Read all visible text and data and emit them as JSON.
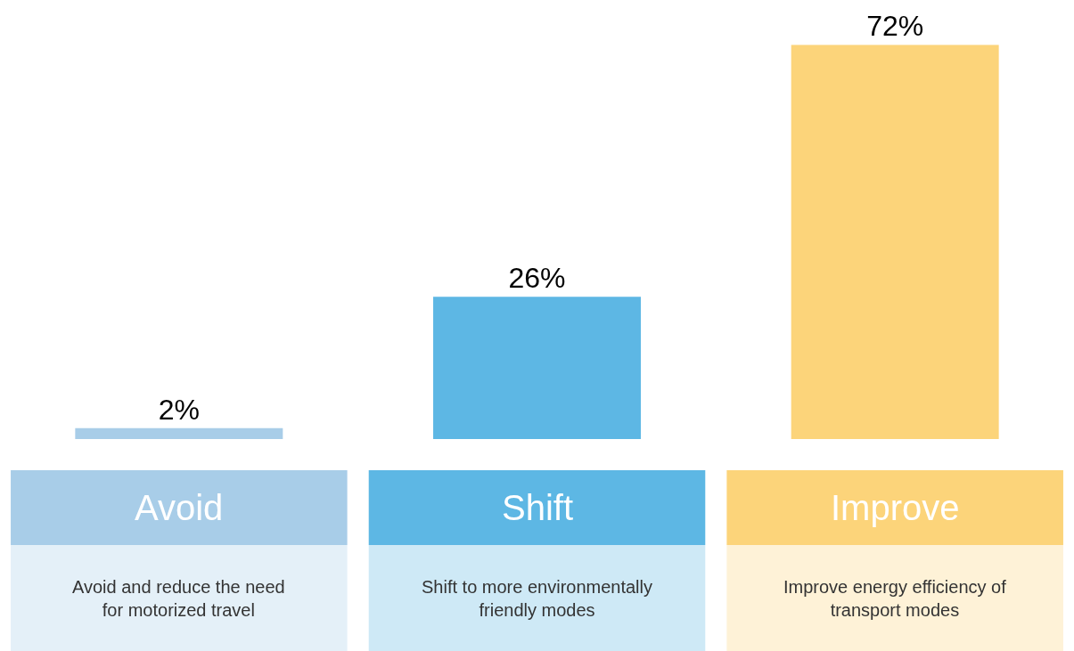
{
  "chart_data": {
    "type": "bar",
    "categories": [
      "Avoid",
      "Shift",
      "Improve"
    ],
    "values": [
      2,
      26,
      72
    ],
    "colors": [
      "#a8cde8",
      "#5db7e4",
      "#fcd47a"
    ],
    "data_labels": true,
    "value_labels": [
      "2%",
      "26%",
      "72%"
    ],
    "annotations": [
      "Avoid and reduce the need\nfor motorized travel",
      "Shift to more environmentally\nfriendly modes",
      "Improve energy efficiency of\ntransport modes"
    ]
  }
}
